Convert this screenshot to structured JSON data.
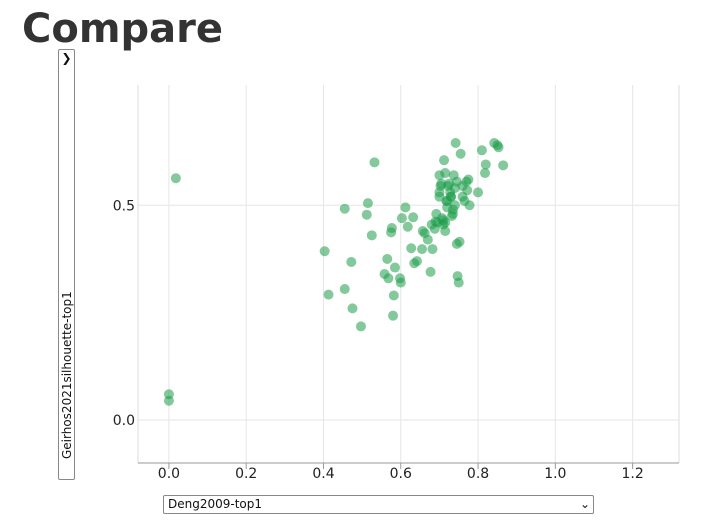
{
  "page": {
    "title": "Compare"
  },
  "y_selector": {
    "value": "Geirhos2021silhouette-top1",
    "icon": "chevron-right-icon"
  },
  "x_selector": {
    "value": "Deng2009-top1",
    "icon": "chevron-down-icon"
  },
  "chart_data": {
    "type": "scatter",
    "xlabel": "Deng2009-top1",
    "ylabel": "Geirhos2021silhouette-top1",
    "xlim": [
      -0.08,
      1.32
    ],
    "ylim": [
      -0.1,
      0.78
    ],
    "xticks": [
      0.0,
      0.2,
      0.4,
      0.6,
      0.8,
      1.0,
      1.2
    ],
    "yticks": [
      0.0,
      0.5
    ],
    "xtick_labels": [
      "0.0",
      "0.2",
      "0.4",
      "0.6",
      "0.8",
      "1.0",
      "1.2"
    ],
    "ytick_labels": [
      "0.0",
      "0.5"
    ],
    "grid": true,
    "point_color": "#1e9c4a",
    "x": [
      0.018,
      0.0,
      0.0,
      0.403,
      0.413,
      0.455,
      0.455,
      0.472,
      0.475,
      0.497,
      0.512,
      0.515,
      0.525,
      0.532,
      0.558,
      0.565,
      0.568,
      0.575,
      0.577,
      0.58,
      0.582,
      0.585,
      0.598,
      0.6,
      0.603,
      0.612,
      0.618,
      0.627,
      0.632,
      0.635,
      0.642,
      0.655,
      0.657,
      0.662,
      0.67,
      0.677,
      0.682,
      0.688,
      0.692,
      0.695,
      0.7,
      0.7,
      0.703,
      0.707,
      0.71,
      0.712,
      0.715,
      0.718,
      0.72,
      0.722,
      0.725,
      0.728,
      0.73,
      0.732,
      0.735,
      0.737,
      0.74,
      0.742,
      0.745,
      0.747,
      0.75,
      0.752,
      0.755,
      0.76,
      0.765,
      0.77,
      0.772,
      0.775,
      0.778,
      0.8,
      0.81,
      0.818,
      0.82,
      0.842,
      0.85,
      0.853,
      0.865,
      0.7,
      0.71,
      0.69,
      0.68,
      0.72,
      0.735,
      0.705,
      0.715,
      0.73,
      0.745,
      0.76,
      0.74,
      0.715
    ],
    "y": [
      0.563,
      0.06,
      0.045,
      0.393,
      0.292,
      0.305,
      0.492,
      0.368,
      0.26,
      0.218,
      0.478,
      0.505,
      0.43,
      0.6,
      0.34,
      0.375,
      0.33,
      0.437,
      0.447,
      0.243,
      0.29,
      0.355,
      0.33,
      0.32,
      0.47,
      0.495,
      0.45,
      0.4,
      0.472,
      0.365,
      0.37,
      0.398,
      0.44,
      0.435,
      0.42,
      0.345,
      0.398,
      0.445,
      0.48,
      0.46,
      0.52,
      0.57,
      0.545,
      0.47,
      0.455,
      0.605,
      0.46,
      0.51,
      0.495,
      0.545,
      0.55,
      0.53,
      0.52,
      0.475,
      0.49,
      0.57,
      0.54,
      0.645,
      0.555,
      0.335,
      0.32,
      0.415,
      0.62,
      0.52,
      0.51,
      0.555,
      0.535,
      0.56,
      0.5,
      0.53,
      0.628,
      0.575,
      0.595,
      0.645,
      0.64,
      0.635,
      0.593,
      0.53,
      0.465,
      0.462,
      0.455,
      0.51,
      0.48,
      0.55,
      0.44,
      0.52,
      0.41,
      0.545,
      0.5,
      0.575
    ]
  }
}
